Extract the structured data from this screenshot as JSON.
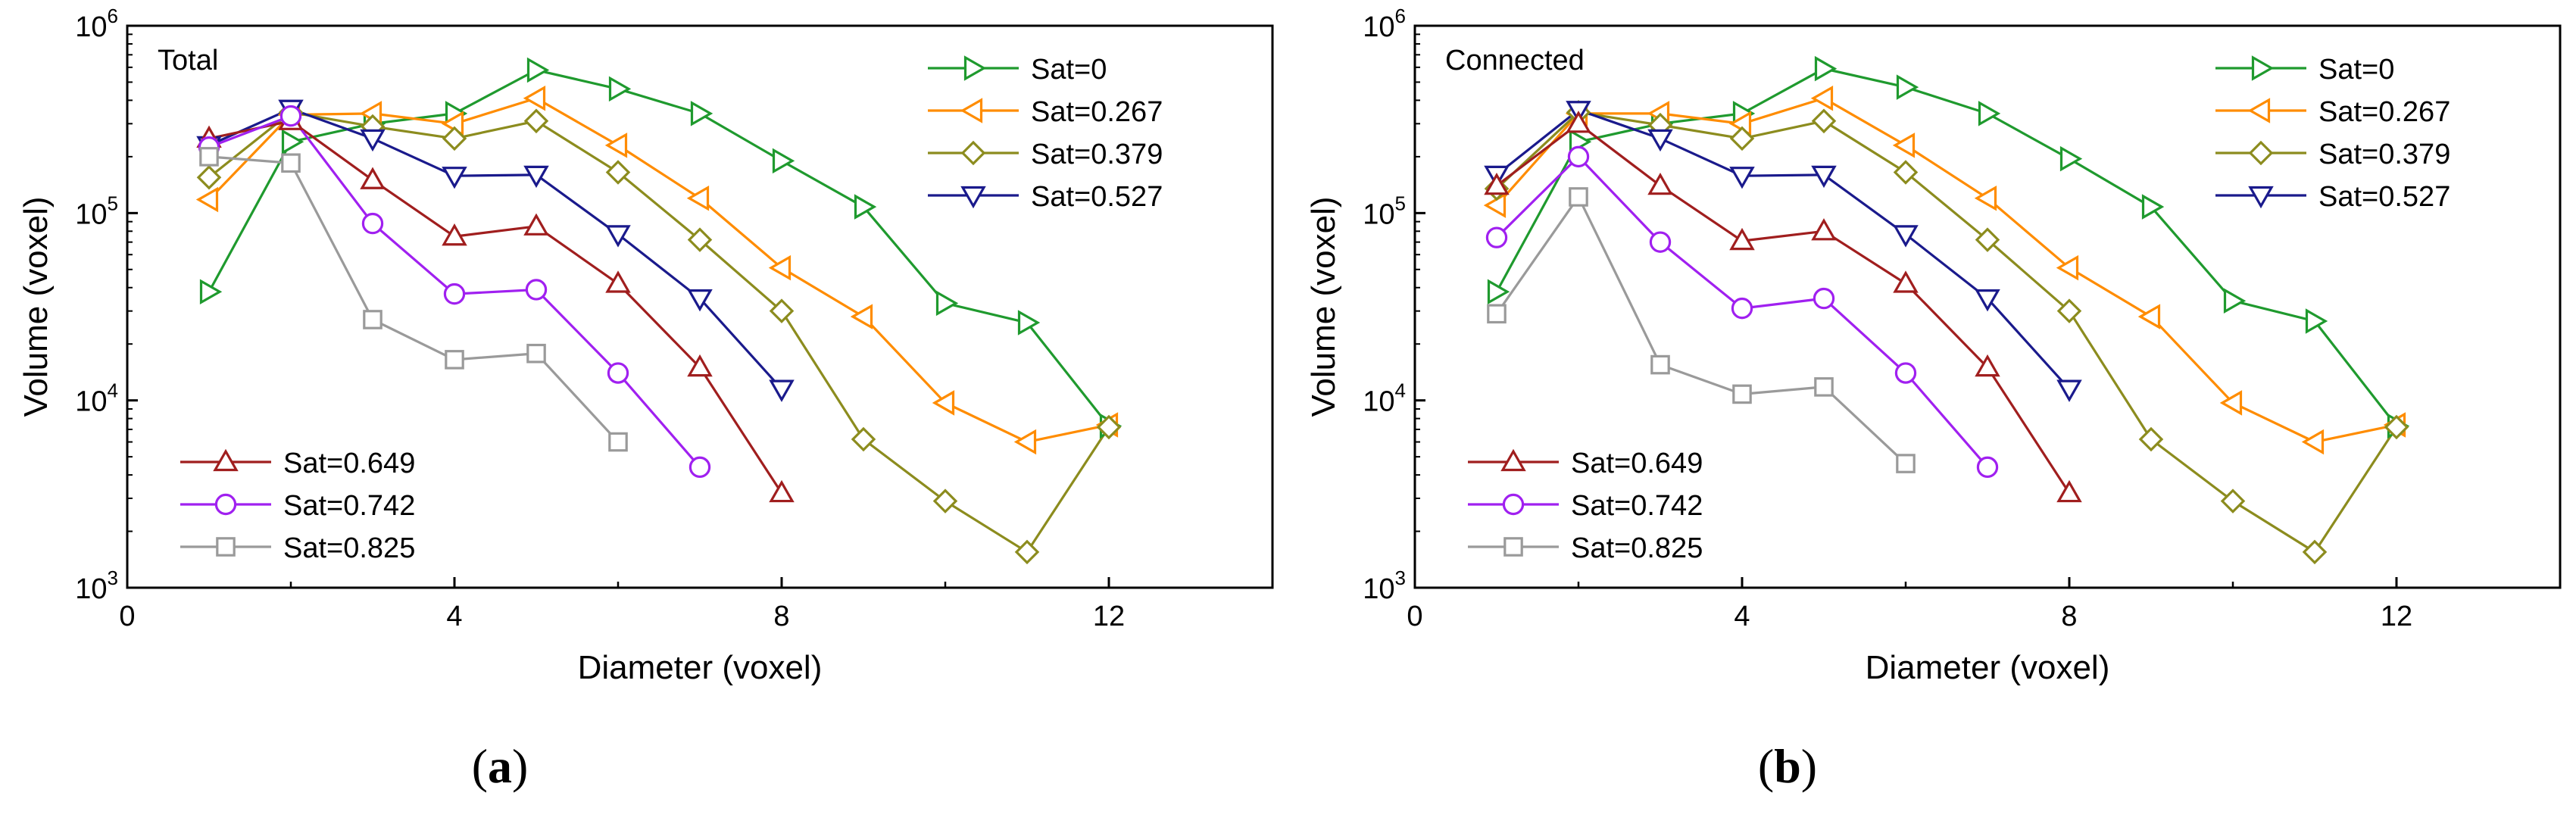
{
  "chart_data": [
    {
      "type": "line",
      "panel_label": "a",
      "inset_label": "Total",
      "xlabel": "Diameter (voxel)",
      "ylabel": "Volume (voxel)",
      "yscale": "log",
      "xlim": [
        0,
        14
      ],
      "ylim": [
        1000,
        1000000
      ],
      "xticks": [
        "0",
        "4",
        "8",
        "12"
      ],
      "xtick_values": [
        0,
        4,
        8,
        12
      ],
      "yticks": [
        {
          "value": 1000,
          "base": "10",
          "exp": "3"
        },
        {
          "value": 10000,
          "base": "10",
          "exp": "4"
        },
        {
          "value": 100000,
          "base": "10",
          "exp": "5"
        },
        {
          "value": 1000000,
          "base": "10",
          "exp": "6"
        }
      ],
      "series": [
        {
          "name": "Sat=0",
          "color": "#1f9a2e",
          "marker": "triangle-right",
          "x": [
            1,
            2,
            3,
            4,
            5,
            6,
            7,
            8,
            9,
            10,
            11,
            12
          ],
          "y": [
            38000,
            240000,
            300000,
            340000,
            580000,
            460000,
            340000,
            190000,
            108000,
            33000,
            26000,
            7300
          ]
        },
        {
          "name": "Sat=0.267",
          "color": "#ff8c00",
          "marker": "triangle-left",
          "x": [
            1,
            2,
            3,
            4,
            5,
            6,
            7,
            8,
            9,
            10,
            11,
            12
          ],
          "y": [
            118000,
            335000,
            340000,
            300000,
            410000,
            230000,
            120000,
            51000,
            28000,
            9700,
            6000,
            7400
          ]
        },
        {
          "name": "Sat=0.379",
          "color": "#8c8c1e",
          "marker": "diamond",
          "x": [
            1,
            2,
            3,
            4,
            5,
            6,
            7,
            8,
            9,
            10,
            11,
            12
          ],
          "y": [
            155000,
            345000,
            290000,
            250000,
            310000,
            165000,
            72000,
            30000,
            6200,
            2900,
            1550,
            7200
          ]
        },
        {
          "name": "Sat=0.527",
          "color": "#1a1a8c",
          "marker": "triangle-down",
          "x": [
            1,
            2,
            3,
            4,
            5,
            6,
            7,
            8
          ],
          "y": [
            230000,
            360000,
            250000,
            158000,
            160000,
            77000,
            35000,
            11500
          ]
        },
        {
          "name": "Sat=0.649",
          "color": "#a01e1e",
          "marker": "triangle-up",
          "x": [
            1,
            2,
            3,
            4,
            5,
            6,
            7,
            8
          ],
          "y": [
            250000,
            310000,
            150000,
            75000,
            85000,
            42000,
            15000,
            3200
          ]
        },
        {
          "name": "Sat=0.742",
          "color": "#a020f0",
          "marker": "circle",
          "x": [
            1,
            2,
            3,
            4,
            5,
            6,
            7
          ],
          "y": [
            225000,
            330000,
            88000,
            37000,
            39000,
            14000,
            4400
          ]
        },
        {
          "name": "Sat=0.825",
          "color": "#9a9a9a",
          "marker": "square",
          "x": [
            1,
            2,
            3,
            4,
            5,
            6
          ],
          "y": [
            200000,
            185000,
            27000,
            16500,
            17800,
            6000
          ]
        }
      ]
    },
    {
      "type": "line",
      "panel_label": "b",
      "inset_label": "Connected",
      "xlabel": "Diameter (voxel)",
      "ylabel": "Volume (voxel)",
      "yscale": "log",
      "xlim": [
        0,
        14
      ],
      "ylim": [
        1000,
        1000000
      ],
      "xticks": [
        "0",
        "4",
        "8",
        "12"
      ],
      "xtick_values": [
        0,
        4,
        8,
        12
      ],
      "yticks": [
        {
          "value": 1000,
          "base": "10",
          "exp": "3"
        },
        {
          "value": 10000,
          "base": "10",
          "exp": "4"
        },
        {
          "value": 100000,
          "base": "10",
          "exp": "5"
        },
        {
          "value": 1000000,
          "base": "10",
          "exp": "6"
        }
      ],
      "series": [
        {
          "name": "Sat=0",
          "color": "#1f9a2e",
          "marker": "triangle-right",
          "x": [
            1,
            2,
            3,
            4,
            5,
            6,
            7,
            8,
            9,
            10,
            11,
            12
          ],
          "y": [
            38000,
            240000,
            300000,
            340000,
            590000,
            470000,
            340000,
            195000,
            108000,
            34000,
            26500,
            7300
          ]
        },
        {
          "name": "Sat=0.267",
          "color": "#ff8c00",
          "marker": "triangle-left",
          "x": [
            1,
            2,
            3,
            4,
            5,
            6,
            7,
            8,
            9,
            10,
            11,
            12
          ],
          "y": [
            110000,
            340000,
            340000,
            300000,
            410000,
            230000,
            120000,
            51000,
            28000,
            9700,
            6000,
            7400
          ]
        },
        {
          "name": "Sat=0.379",
          "color": "#8c8c1e",
          "marker": "diamond",
          "x": [
            1,
            2,
            3,
            4,
            5,
            6,
            7,
            8,
            9,
            10,
            11,
            12
          ],
          "y": [
            135000,
            345000,
            295000,
            250000,
            310000,
            165000,
            72000,
            30000,
            6200,
            2900,
            1550,
            7200
          ]
        },
        {
          "name": "Sat=0.527",
          "color": "#1a1a8c",
          "marker": "triangle-down",
          "x": [
            1,
            2,
            3,
            4,
            5,
            6,
            7,
            8
          ],
          "y": [
            160000,
            355000,
            250000,
            158000,
            160000,
            77000,
            35000,
            11500
          ]
        },
        {
          "name": "Sat=0.649",
          "color": "#a01e1e",
          "marker": "triangle-up",
          "x": [
            1,
            2,
            3,
            4,
            5,
            6,
            7,
            8
          ],
          "y": [
            140000,
            300000,
            140000,
            71000,
            80000,
            42000,
            15000,
            3200
          ]
        },
        {
          "name": "Sat=0.742",
          "color": "#a020f0",
          "marker": "circle",
          "x": [
            1,
            2,
            3,
            4,
            5,
            6,
            7
          ],
          "y": [
            74000,
            200000,
            70000,
            31000,
            35000,
            14000,
            4400
          ]
        },
        {
          "name": "Sat=0.825",
          "color": "#9a9a9a",
          "marker": "square",
          "x": [
            1,
            2,
            3,
            4,
            5,
            6
          ],
          "y": [
            29000,
            122000,
            15500,
            10800,
            11800,
            4600
          ]
        }
      ]
    }
  ]
}
